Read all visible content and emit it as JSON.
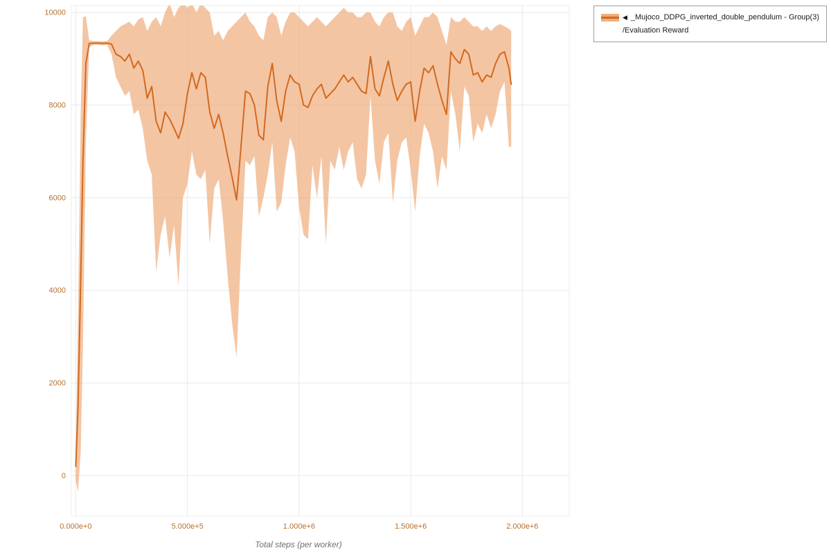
{
  "chart_data": {
    "type": "line",
    "title": "",
    "xlabel": "Total steps (per worker)",
    "ylabel": "",
    "xlim": [
      -20000,
      2210000
    ],
    "ylim": [
      -875,
      10150
    ],
    "grid": true,
    "grid_color": "#e8e8e8",
    "axis_tick_color": "#b5702d",
    "xlabel_color": "#6e6e6e",
    "legend_position": "top-right",
    "x_ticks": [
      {
        "value": 0,
        "label": "0.000e+0"
      },
      {
        "value": 500000,
        "label": "5.000e+5"
      },
      {
        "value": 1000000,
        "label": "1.000e+6"
      },
      {
        "value": 1500000,
        "label": "1.500e+6"
      },
      {
        "value": 2000000,
        "label": "2.000e+6"
      }
    ],
    "y_ticks": [
      {
        "value": 0,
        "label": "0"
      },
      {
        "value": 2000,
        "label": "2000"
      },
      {
        "value": 4000,
        "label": "4000"
      },
      {
        "value": 6000,
        "label": "6000"
      },
      {
        "value": 8000,
        "label": "8000"
      },
      {
        "value": 10000,
        "label": "10000"
      }
    ],
    "series": [
      {
        "name": "_Mujoco_DDPG_inverted_double_pendulum - Group(3) /Evaluation Reward",
        "color": "#d2691e",
        "band_color": "#f0ad7c",
        "band_opacity": 0.7,
        "points": [
          [
            0,
            200,
            -100,
            500
          ],
          [
            10000,
            1500,
            -350,
            3500
          ],
          [
            22000,
            4200,
            500,
            7800
          ],
          [
            32000,
            6800,
            2800,
            9900
          ],
          [
            45000,
            8900,
            7200,
            9920
          ],
          [
            60000,
            9330,
            9250,
            9400
          ],
          [
            80000,
            9340,
            9300,
            9380
          ],
          [
            100000,
            9340,
            9300,
            9380
          ],
          [
            120000,
            9335,
            9290,
            9380
          ],
          [
            140000,
            9340,
            9300,
            9380
          ],
          [
            160000,
            9320,
            9100,
            9500
          ],
          [
            180000,
            9100,
            8600,
            9600
          ],
          [
            200000,
            9050,
            8400,
            9700
          ],
          [
            220000,
            8950,
            8200,
            9750
          ],
          [
            240000,
            9100,
            8300,
            9800
          ],
          [
            260000,
            8800,
            7800,
            9700
          ],
          [
            280000,
            8950,
            7900,
            9850
          ],
          [
            300000,
            8750,
            7500,
            9900
          ],
          [
            320000,
            8150,
            6800,
            9600
          ],
          [
            340000,
            8400,
            6500,
            9800
          ],
          [
            360000,
            7650,
            4400,
            9900
          ],
          [
            380000,
            7400,
            5200,
            9700
          ],
          [
            400000,
            7850,
            5600,
            10000
          ],
          [
            420000,
            7700,
            4700,
            10200
          ],
          [
            440000,
            7500,
            5400,
            9900
          ],
          [
            460000,
            7280,
            4100,
            10100
          ],
          [
            480000,
            7600,
            6000,
            10200
          ],
          [
            500000,
            8250,
            6300,
            10100
          ],
          [
            520000,
            8700,
            7000,
            10200
          ],
          [
            540000,
            8350,
            6500,
            10000
          ],
          [
            560000,
            8700,
            6400,
            10200
          ],
          [
            580000,
            8600,
            6600,
            10100
          ],
          [
            600000,
            7850,
            5000,
            10000
          ],
          [
            620000,
            7500,
            6200,
            9500
          ],
          [
            640000,
            7800,
            6400,
            9600
          ],
          [
            660000,
            7400,
            5500,
            9400
          ],
          [
            680000,
            6900,
            4300,
            9600
          ],
          [
            700000,
            6450,
            3300,
            9700
          ],
          [
            720000,
            5950,
            2550,
            9800
          ],
          [
            740000,
            7100,
            4800,
            9900
          ],
          [
            760000,
            8300,
            6800,
            10000
          ],
          [
            780000,
            8250,
            6700,
            9800
          ],
          [
            800000,
            8000,
            6900,
            9700
          ],
          [
            820000,
            7350,
            5600,
            9500
          ],
          [
            840000,
            7250,
            6000,
            9400
          ],
          [
            860000,
            8400,
            6500,
            9900
          ],
          [
            880000,
            8900,
            7200,
            10000
          ],
          [
            900000,
            8100,
            5700,
            9900
          ],
          [
            920000,
            7650,
            5900,
            9500
          ],
          [
            940000,
            8300,
            6700,
            9800
          ],
          [
            960000,
            8650,
            7300,
            10000
          ],
          [
            980000,
            8500,
            7000,
            10000
          ],
          [
            1000000,
            8450,
            5800,
            9900
          ],
          [
            1020000,
            8000,
            5200,
            9800
          ],
          [
            1040000,
            7950,
            5100,
            9700
          ],
          [
            1060000,
            8200,
            6700,
            9800
          ],
          [
            1080000,
            8350,
            6000,
            9900
          ],
          [
            1100000,
            8450,
            6900,
            9800
          ],
          [
            1120000,
            8150,
            5000,
            9700
          ],
          [
            1140000,
            8250,
            6800,
            9800
          ],
          [
            1160000,
            8350,
            6600,
            9900
          ],
          [
            1180000,
            8500,
            7100,
            10000
          ],
          [
            1200000,
            8650,
            6600,
            10100
          ],
          [
            1220000,
            8500,
            7000,
            10000
          ],
          [
            1240000,
            8600,
            7200,
            10000
          ],
          [
            1260000,
            8450,
            6400,
            9900
          ],
          [
            1280000,
            8300,
            6200,
            9900
          ],
          [
            1300000,
            8250,
            6500,
            10000
          ],
          [
            1320000,
            9050,
            8200,
            10000
          ],
          [
            1340000,
            8350,
            6800,
            9800
          ],
          [
            1360000,
            8200,
            6300,
            9700
          ],
          [
            1380000,
            8600,
            7200,
            9900
          ],
          [
            1400000,
            8950,
            7400,
            10000
          ],
          [
            1420000,
            8450,
            5900,
            10000
          ],
          [
            1440000,
            8100,
            6800,
            9700
          ],
          [
            1460000,
            8300,
            7200,
            9600
          ],
          [
            1480000,
            8450,
            7300,
            9800
          ],
          [
            1500000,
            8500,
            6600,
            9900
          ],
          [
            1520000,
            7650,
            5700,
            9500
          ],
          [
            1540000,
            8300,
            6900,
            9700
          ],
          [
            1560000,
            8800,
            7600,
            9900
          ],
          [
            1580000,
            8700,
            7400,
            9900
          ],
          [
            1600000,
            8850,
            7000,
            10000
          ],
          [
            1620000,
            8450,
            6200,
            9900
          ],
          [
            1640000,
            8100,
            6900,
            9600
          ],
          [
            1660000,
            7800,
            6600,
            9300
          ],
          [
            1680000,
            9150,
            8300,
            9900
          ],
          [
            1700000,
            9000,
            7800,
            9800
          ],
          [
            1720000,
            8900,
            7000,
            9800
          ],
          [
            1740000,
            9200,
            8400,
            9900
          ],
          [
            1760000,
            9100,
            8200,
            9800
          ],
          [
            1780000,
            8650,
            7200,
            9700
          ],
          [
            1800000,
            8700,
            7600,
            9700
          ],
          [
            1820000,
            8500,
            7400,
            9600
          ],
          [
            1840000,
            8650,
            7800,
            9700
          ],
          [
            1860000,
            8600,
            7500,
            9600
          ],
          [
            1880000,
            8900,
            7800,
            9700
          ],
          [
            1900000,
            9100,
            8300,
            9750
          ],
          [
            1920000,
            9150,
            8500,
            9700
          ],
          [
            1940000,
            8800,
            7100,
            9650
          ],
          [
            1950000,
            8450,
            7100,
            9600
          ]
        ]
      }
    ]
  },
  "legend": {
    "collapse_icon": "◀",
    "entries": [
      {
        "label": "_Mujoco_DDPG_inverted_double_pendulum - Group(3)",
        "sublabel": "/Evaluation Reward"
      }
    ]
  }
}
